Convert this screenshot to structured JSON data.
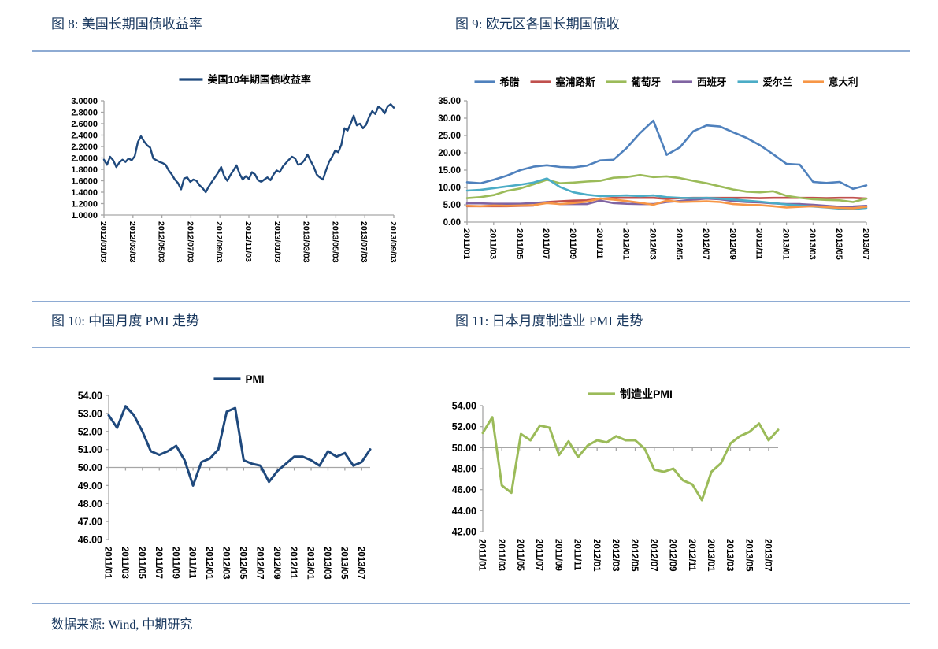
{
  "page": {
    "source_note": "数据来源: Wind, 中期研究"
  },
  "chart_data": [
    {
      "type": "line",
      "figure_label": "图 8: 美国长期国债收益率",
      "legend": [
        {
          "label": "美国10年期国债收益率",
          "color": "#1F497D"
        }
      ],
      "y_axis": {
        "min": 1.0,
        "max": 3.0,
        "tick_labels": [
          "3.0000",
          "2.8000",
          "2.6000",
          "2.4000",
          "2.2000",
          "2.0000",
          "1.8000",
          "1.6000",
          "1.4000",
          "1.2000",
          "1.0000"
        ]
      },
      "x_tick_labels": [
        "2012/01/03",
        "2012/03/03",
        "2012/05/03",
        "2012/07/03",
        "2012/09/03",
        "2012/11/03",
        "2013/01/03",
        "2013/03/03",
        "2013/05/03",
        "2013/07/03",
        "2013/09/03"
      ],
      "x_tick_every": null,
      "axis_cross_value": null,
      "series": [
        {
          "name": "美国10年期国债收益率",
          "color": "#1F497D",
          "values": [
            1.97,
            1.88,
            2.02,
            1.96,
            1.84,
            1.92,
            1.97,
            1.93,
            1.99,
            1.96,
            2.03,
            2.28,
            2.38,
            2.29,
            2.22,
            2.18,
            1.99,
            1.96,
            1.93,
            1.91,
            1.88,
            1.78,
            1.71,
            1.62,
            1.56,
            1.45,
            1.64,
            1.66,
            1.58,
            1.62,
            1.6,
            1.52,
            1.47,
            1.4,
            1.5,
            1.58,
            1.66,
            1.74,
            1.84,
            1.68,
            1.6,
            1.7,
            1.78,
            1.87,
            1.72,
            1.62,
            1.68,
            1.63,
            1.75,
            1.71,
            1.61,
            1.58,
            1.62,
            1.66,
            1.61,
            1.71,
            1.78,
            1.75,
            1.85,
            1.91,
            1.97,
            2.02,
            1.99,
            1.88,
            1.9,
            1.96,
            2.06,
            1.95,
            1.85,
            1.71,
            1.66,
            1.62,
            1.78,
            1.93,
            2.02,
            2.13,
            2.1,
            2.23,
            2.52,
            2.48,
            2.6,
            2.74,
            2.57,
            2.6,
            2.52,
            2.58,
            2.72,
            2.82,
            2.77,
            2.9,
            2.86,
            2.78,
            2.9,
            2.94,
            2.88
          ]
        }
      ]
    },
    {
      "type": "line",
      "figure_label": "图 9: 欧元区各国长期国债收",
      "legend": [
        {
          "label": "希腊",
          "color": "#4F81BD"
        },
        {
          "label": "塞浦路斯",
          "color": "#C0504D"
        },
        {
          "label": "葡萄牙",
          "color": "#9BBB59"
        },
        {
          "label": "西班牙",
          "color": "#8064A2"
        },
        {
          "label": "爱尔兰",
          "color": "#4BACC6"
        },
        {
          "label": "意大利",
          "color": "#F79646"
        }
      ],
      "y_axis": {
        "min": 0,
        "max": 35,
        "tick_labels": [
          "35.00",
          "30.00",
          "25.00",
          "20.00",
          "15.00",
          "10.00",
          "5.00",
          "0.00"
        ]
      },
      "x_tick_labels": [
        "2011/01",
        "2011/03",
        "2011/05",
        "2011/07",
        "2011/09",
        "2011/11",
        "2012/01",
        "2012/03",
        "2012/05",
        "2012/07",
        "2012/09",
        "2012/11",
        "2013/01",
        "2013/03",
        "2013/05",
        "2013/07"
      ],
      "x_tick_every": 2,
      "axis_cross_value": null,
      "series": [
        {
          "name": "希腊",
          "color": "#4F81BD",
          "values": [
            11.5,
            11.2,
            12.2,
            13.4,
            15.0,
            16.0,
            16.4,
            15.9,
            15.8,
            16.3,
            17.8,
            18.0,
            21.4,
            25.7,
            29.3,
            19.4,
            21.6,
            26.2,
            27.9,
            27.6,
            25.9,
            24.3,
            22.2,
            19.6,
            16.8,
            16.6,
            11.6,
            11.3,
            11.6,
            9.6,
            10.6
          ]
        },
        {
          "name": "塞浦路斯",
          "color": "#C0504D",
          "values": [
            4.6,
            4.6,
            4.6,
            4.6,
            4.7,
            4.8,
            5.8,
            6.0,
            6.2,
            6.3,
            6.7,
            7.0,
            7.0,
            7.0,
            7.0,
            6.7,
            6.9,
            7.0,
            7.0,
            7.0,
            7.0,
            7.0,
            6.9,
            7.0,
            7.0,
            7.0,
            7.0,
            6.9,
            7.0,
            7.0,
            6.8
          ]
        },
        {
          "name": "葡萄牙",
          "color": "#9BBB59",
          "values": [
            6.9,
            7.2,
            7.8,
            9.0,
            9.7,
            10.9,
            12.2,
            11.2,
            11.4,
            11.7,
            11.9,
            12.8,
            13.0,
            13.6,
            13.0,
            13.2,
            12.7,
            11.9,
            11.2,
            10.3,
            9.4,
            8.8,
            8.6,
            8.9,
            7.6,
            7.0,
            6.6,
            6.4,
            6.3,
            5.8,
            6.8
          ]
        },
        {
          "name": "西班牙",
          "color": "#8064A2",
          "values": [
            5.4,
            5.4,
            5.3,
            5.3,
            5.3,
            5.5,
            5.8,
            5.2,
            5.2,
            5.2,
            6.2,
            5.5,
            5.3,
            5.2,
            5.2,
            5.8,
            6.1,
            6.5,
            6.8,
            6.6,
            6.1,
            5.8,
            5.7,
            5.4,
            5.2,
            5.2,
            5.0,
            4.7,
            4.4,
            4.5,
            4.7
          ]
        },
        {
          "name": "爱尔兰",
          "color": "#4BACC6",
          "values": [
            9.1,
            9.3,
            9.8,
            10.3,
            10.8,
            11.4,
            12.6,
            10.1,
            8.6,
            7.9,
            7.5,
            7.6,
            7.7,
            7.5,
            7.7,
            7.2,
            7.0,
            6.9,
            7.0,
            6.8,
            6.5,
            6.2,
            5.9,
            5.5,
            5.1,
            4.8,
            4.5,
            4.2,
            3.9,
            3.8,
            4.1
          ]
        },
        {
          "name": "意大利",
          "color": "#F79646",
          "values": [
            4.7,
            4.6,
            4.8,
            4.7,
            4.8,
            4.9,
            5.5,
            5.2,
            5.5,
            5.9,
            6.8,
            6.5,
            6.1,
            5.6,
            5.0,
            6.2,
            5.8,
            5.9,
            6.0,
            5.8,
            5.2,
            5.0,
            4.9,
            4.6,
            4.2,
            4.4,
            4.6,
            4.3,
            4.1,
            4.0,
            4.4
          ]
        }
      ]
    },
    {
      "type": "line",
      "figure_label": "图 10: 中国月度 PMI 走势",
      "legend": [
        {
          "label": "PMI",
          "color": "#1F497D"
        }
      ],
      "y_axis": {
        "min": 46,
        "max": 54,
        "tick_labels": [
          "54.00",
          "53.00",
          "52.00",
          "51.00",
          "50.00",
          "49.00",
          "48.00",
          "47.00",
          "46.00"
        ]
      },
      "x_tick_labels": [
        "2011/01",
        "2011/03",
        "2011/05",
        "2011/07",
        "2011/09",
        "2011/11",
        "2012/01",
        "2012/03",
        "2012/05",
        "2012/07",
        "2012/09",
        "2012/11",
        "2013/01",
        "2013/03",
        "2013/05",
        "2013/07"
      ],
      "x_tick_every": 2,
      "axis_cross_value": 50,
      "series": [
        {
          "name": "PMI",
          "color": "#1F497D",
          "values": [
            52.9,
            52.2,
            53.4,
            52.9,
            52.0,
            50.9,
            50.7,
            50.9,
            51.2,
            50.4,
            49.0,
            50.3,
            50.5,
            51.0,
            53.1,
            53.3,
            50.4,
            50.2,
            50.1,
            49.2,
            49.8,
            50.2,
            50.6,
            50.6,
            50.4,
            50.1,
            50.9,
            50.6,
            50.8,
            50.1,
            50.3,
            51.0
          ]
        }
      ]
    },
    {
      "type": "line",
      "figure_label": "图 11: 日本月度制造业 PMI 走势",
      "legend": [
        {
          "label": "制造业PMI",
          "color": "#9BBB59"
        }
      ],
      "y_axis": {
        "min": 42,
        "max": 54,
        "tick_labels": [
          "54.00",
          "52.00",
          "50.00",
          "48.00",
          "46.00",
          "44.00",
          "42.00"
        ]
      },
      "x_tick_labels": [
        "2011/01",
        "2011/03",
        "2011/05",
        "2011/07",
        "2011/09",
        "2011/11",
        "2012/01",
        "2012/03",
        "2012/05",
        "2012/07",
        "2012/09",
        "2012/11",
        "2013/01",
        "2013/03",
        "2013/05",
        "2013/07"
      ],
      "x_tick_every": 2,
      "axis_cross_value": 50,
      "series": [
        {
          "name": "制造业PMI",
          "color": "#9BBB59",
          "values": [
            51.4,
            52.9,
            46.4,
            45.7,
            51.3,
            50.7,
            52.1,
            51.9,
            49.3,
            50.6,
            49.1,
            50.2,
            50.7,
            50.5,
            51.1,
            50.7,
            50.7,
            49.9,
            47.9,
            47.7,
            48.0,
            46.9,
            46.5,
            45.0,
            47.7,
            48.5,
            50.4,
            51.1,
            51.5,
            52.3,
            50.7,
            51.7
          ]
        }
      ]
    }
  ]
}
